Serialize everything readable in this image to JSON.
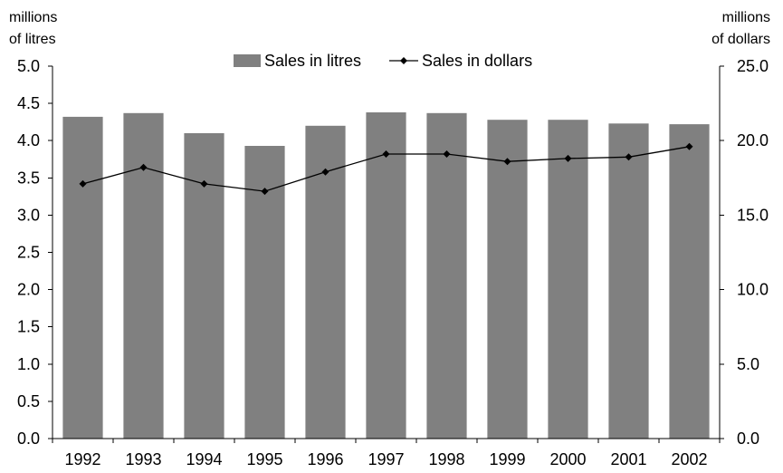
{
  "chart_data": {
    "type": "bar",
    "categories": [
      "1992",
      "1993",
      "1994",
      "1995",
      "1996",
      "1997",
      "1998",
      "1999",
      "2000",
      "2001",
      "2002"
    ],
    "series": [
      {
        "name": "Sales in litres",
        "kind": "bar",
        "axis": "left",
        "color": "#808080",
        "values": [
          4.32,
          4.37,
          4.1,
          3.93,
          4.2,
          4.38,
          4.37,
          4.28,
          4.28,
          4.23,
          4.22
        ]
      },
      {
        "name": "Sales in dollars",
        "kind": "line",
        "axis": "right",
        "color": "#000000",
        "marker": "diamond",
        "values": [
          17.1,
          18.2,
          17.1,
          16.6,
          17.9,
          19.1,
          19.1,
          18.6,
          18.8,
          18.9,
          19.6
        ]
      }
    ],
    "y_left": {
      "label_line1": "millions",
      "label_line2": "of litres",
      "ylim": [
        0,
        5
      ],
      "ticks": [
        "0.0",
        "0.5",
        "1.0",
        "1.5",
        "2.0",
        "2.5",
        "3.0",
        "3.5",
        "4.0",
        "4.5",
        "5.0"
      ]
    },
    "y_right": {
      "label_line1": "millions",
      "label_line2": "of dollars",
      "ylim": [
        0,
        25
      ],
      "ticks": [
        "0.0",
        "5.0",
        "10.0",
        "15.0",
        "20.0",
        "25.0"
      ]
    },
    "legend_position": "top-center",
    "grid": false
  }
}
